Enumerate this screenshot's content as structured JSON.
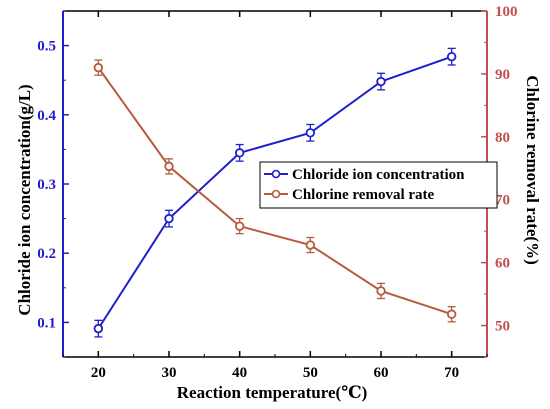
{
  "chart_data": {
    "type": "line",
    "xlabel": "Reaction temperature(℃)",
    "ylabel_left": "Chloride ion concentration(g/L)",
    "ylabel_right": "Chlorine removal rate(%)",
    "x": [
      20,
      30,
      40,
      50,
      60,
      70
    ],
    "x_ticks": [
      "20",
      "30",
      "40",
      "50",
      "60",
      "70"
    ],
    "xlim": [
      15,
      75
    ],
    "ylim_left": [
      0.05,
      0.55
    ],
    "ylim_right": [
      45,
      100
    ],
    "y_left_ticks": [
      "0.1",
      "0.2",
      "0.3",
      "0.4",
      "0.5"
    ],
    "y_right_ticks": [
      "50",
      "60",
      "70",
      "80",
      "90",
      "100"
    ],
    "grid": false,
    "legend_position": "center-right",
    "series": [
      {
        "name": "Chloride ion concentration",
        "axis": "left",
        "color": "#1f1fcc",
        "values": [
          0.091,
          0.25,
          0.345,
          0.374,
          0.448,
          0.484
        ],
        "errors": [
          0.012,
          0.012,
          0.012,
          0.012,
          0.012,
          0.012
        ]
      },
      {
        "name": "Chlorine removal rate",
        "axis": "right",
        "color": "#b85a3e",
        "values": [
          91.0,
          75.3,
          65.8,
          62.8,
          55.5,
          51.8
        ],
        "errors": [
          1.2,
          1.2,
          1.2,
          1.2,
          1.2,
          1.2
        ]
      }
    ],
    "colors": {
      "left_axis": "#1f1fcc",
      "right_axis": "#c0504d",
      "frame": "#000000"
    }
  }
}
